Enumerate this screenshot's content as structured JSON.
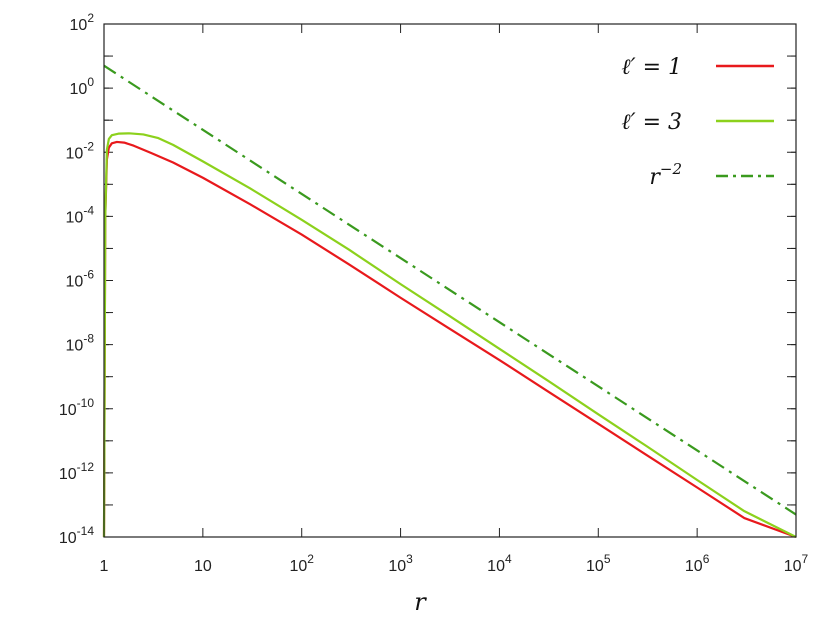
{
  "chart_data": {
    "type": "line",
    "title": "",
    "xlabel": "r",
    "ylabel": "",
    "xscale": "log",
    "yscale": "log",
    "xlim": [
      1,
      10000000
    ],
    "ylim": [
      1e-14,
      100
    ],
    "grid": false,
    "legend_position": "top-right",
    "x_tick_labels": [
      {
        "value": 1,
        "base": "1",
        "exp": ""
      },
      {
        "value": 10,
        "base": "10",
        "exp": ""
      },
      {
        "value": 100,
        "base": "10",
        "exp": "2"
      },
      {
        "value": 1000,
        "base": "10",
        "exp": "3"
      },
      {
        "value": 10000,
        "base": "10",
        "exp": "4"
      },
      {
        "value": 100000,
        "base": "10",
        "exp": "5"
      },
      {
        "value": 1000000,
        "base": "10",
        "exp": "6"
      },
      {
        "value": 10000000,
        "base": "10",
        "exp": "7"
      }
    ],
    "y_tick_labels": [
      {
        "value": 100,
        "base": "10",
        "exp": "2"
      },
      {
        "value": 1,
        "base": "10",
        "exp": "0"
      },
      {
        "value": 0.01,
        "base": "10",
        "exp": "-2"
      },
      {
        "value": 0.0001,
        "base": "10",
        "exp": "-4"
      },
      {
        "value": 1e-06,
        "base": "10",
        "exp": "-6"
      },
      {
        "value": 1e-08,
        "base": "10",
        "exp": "-8"
      },
      {
        "value": 1e-10,
        "base": "10",
        "exp": "-10"
      },
      {
        "value": 1e-12,
        "base": "10",
        "exp": "-12"
      },
      {
        "value": 1e-14,
        "base": "10",
        "exp": "-14"
      }
    ],
    "series": [
      {
        "name": "ℓ′ = 1",
        "color": "#e8191c",
        "style": "solid",
        "x": [
          1.0,
          1.03,
          1.07,
          1.12,
          1.2,
          1.35,
          1.6,
          2.0,
          3.0,
          5.0,
          10,
          30,
          100,
          300,
          1000,
          3000,
          10000,
          30000,
          100000,
          300000,
          1000000,
          3000000,
          10000000
        ],
        "y": [
          1e-14,
          0.0001,
          0.006,
          0.014,
          0.019,
          0.021,
          0.02,
          0.016,
          0.0095,
          0.0048,
          0.0016,
          0.00024,
          2.7e-05,
          3.2e-06,
          2.9e-07,
          3.4e-08,
          3.3e-09,
          3.7e-10,
          3.4e-11,
          3.8e-12,
          3.5e-13,
          3.9e-14,
          3.5e-15
        ]
      },
      {
        "name": "ℓ′ = 3",
        "color": "#8cd11c",
        "style": "solid",
        "x": [
          1.0,
          1.03,
          1.07,
          1.12,
          1.2,
          1.4,
          1.8,
          2.5,
          3.5,
          5.0,
          10,
          30,
          100,
          300,
          1000,
          3000,
          10000,
          30000,
          100000,
          300000,
          1000000,
          3000000,
          10000000
        ],
        "y": [
          1e-14,
          0.0001,
          0.012,
          0.026,
          0.034,
          0.038,
          0.039,
          0.036,
          0.028,
          0.017,
          0.0052,
          0.00075,
          7.8e-05,
          9.2e-06,
          7.7e-07,
          8.5e-08,
          7.4e-09,
          8e-10,
          6.7e-11,
          7.2e-12,
          6e-13,
          6.4e-14,
          5.3e-15
        ]
      },
      {
        "name": "r^{-2}",
        "color": "#3a9a1e",
        "style": "dashdot",
        "x": [
          1,
          10000000
        ],
        "y": [
          5,
          5e-14
        ]
      }
    ]
  },
  "legend": [
    {
      "label_base": "ℓ′ = 1",
      "label_exp": ""
    },
    {
      "label_base": "ℓ′ = 3",
      "label_exp": ""
    },
    {
      "label_base": "r",
      "label_exp": "−2"
    }
  ]
}
